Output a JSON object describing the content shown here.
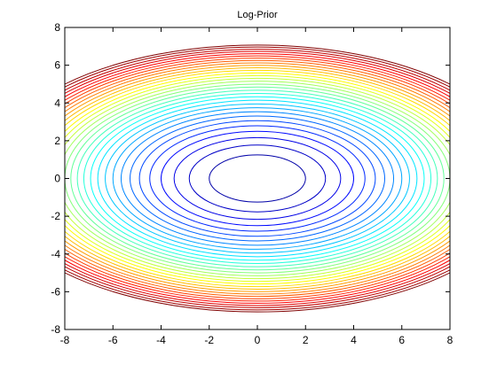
{
  "chart_data": {
    "type": "contour",
    "title": "Log-Prior",
    "xlabel": "",
    "ylabel": "",
    "xlim": [
      -8,
      8
    ],
    "ylim": [
      -8,
      8
    ],
    "x_ticks": [
      -8,
      -6,
      -4,
      -2,
      0,
      2,
      4,
      6,
      8
    ],
    "y_ticks": [
      -8,
      -6,
      -4,
      -2,
      0,
      2,
      4,
      6,
      8
    ],
    "x_tick_labels": [
      "-8",
      "-6",
      "-4",
      "-2",
      "0",
      "2",
      "4",
      "6",
      "8"
    ],
    "y_tick_labels": [
      "-8",
      "-6",
      "-4",
      "-2",
      "0",
      "2",
      "4",
      "6",
      "8"
    ],
    "grid": false,
    "legend": "none",
    "colormap": "jet",
    "function": "log_prior = -(x^2 + 2.56*y^2) / 2 (elliptical, centered at origin)",
    "center": [
      0,
      0
    ],
    "y_axis_scale_ratio": 0.625,
    "contour_x_semi_axes": [
      2.0,
      2.83,
      3.46,
      4.0,
      4.47,
      4.9,
      5.29,
      5.66,
      6.0,
      6.32,
      6.63,
      6.93,
      7.21,
      7.48,
      7.75,
      8.0,
      8.25,
      8.49,
      8.72,
      8.94,
      9.17,
      9.38,
      9.59,
      9.8,
      10.0,
      10.2,
      10.39,
      10.58,
      10.77,
      10.95,
      11.14,
      11.31
    ],
    "colors": {
      "low": "#00008f",
      "mid": "#00ffff",
      "high": "#800000",
      "axes": "#000000",
      "background": "#ffffff"
    }
  }
}
